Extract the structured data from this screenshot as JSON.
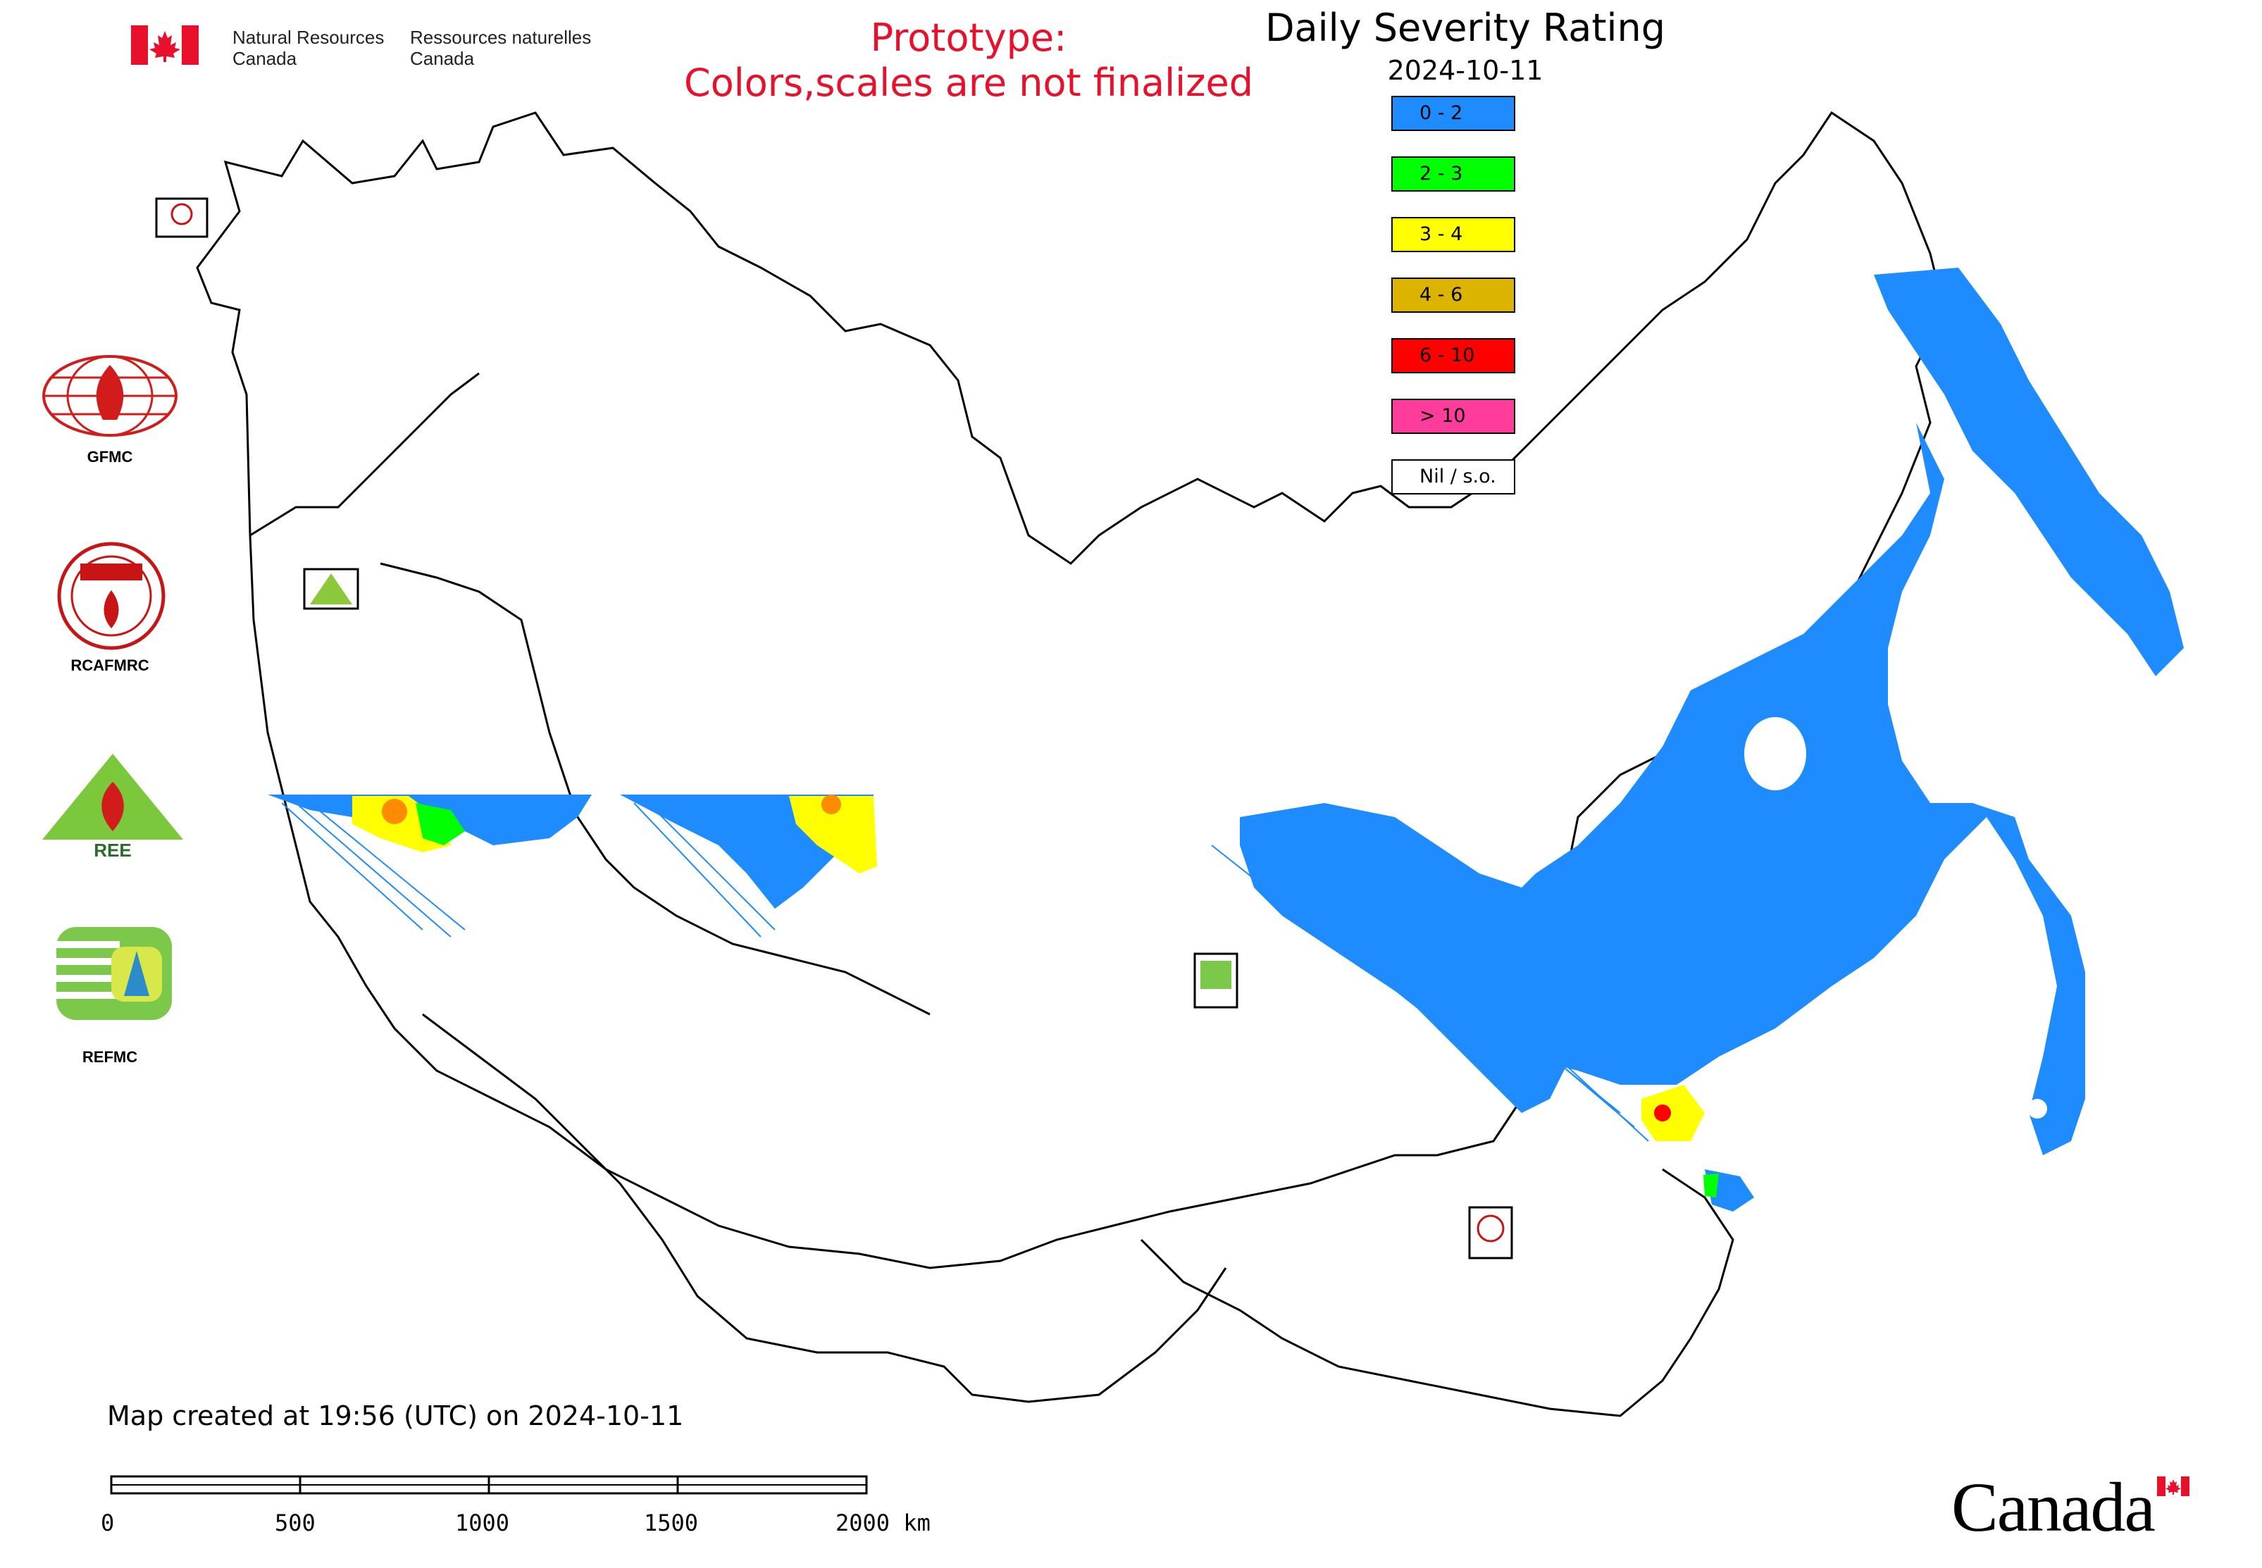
{
  "header": {
    "dept_en_line1": "Natural Resources",
    "dept_en_line2": "Canada",
    "dept_fr_line1": "Ressources naturelles",
    "dept_fr_line2": "Canada"
  },
  "prototype_notice": {
    "line1": "Prototype:",
    "line2": "Colors,scales are not finalized",
    "color": "#e8102a"
  },
  "map": {
    "title": "Daily Severity Rating",
    "date": "2024-10-11"
  },
  "legend": {
    "items": [
      {
        "label": "0 - 2",
        "color": "#1e8cff"
      },
      {
        "label": "2 - 3",
        "color": "#00ff00"
      },
      {
        "label": "3 - 4",
        "color": "#ffff00"
      },
      {
        "label": "4 - 6",
        "color": "#dcb400"
      },
      {
        "label": "6 - 10",
        "color": "#ff0000"
      },
      {
        "label": "> 10",
        "color": "#ff3c9c"
      },
      {
        "label": "Nil / s.o.",
        "color": "#ffffff"
      }
    ]
  },
  "partner_logos": [
    {
      "label": "GFMC",
      "icon": "gfmc-logo"
    },
    {
      "label": "RCAFMRC",
      "icon": "rcafmrc-logo"
    },
    {
      "label": "",
      "icon": "reefmc-logo"
    },
    {
      "label": "REFMC",
      "icon": "refmc-logo"
    }
  ],
  "footer": {
    "created_note": "Map created at 19:56 (UTC) on 2024-10-11",
    "scale_labels": [
      "0",
      "500",
      "1000",
      "1500",
      "2000 km"
    ],
    "wordmark": "Canada"
  },
  "colors": {
    "fill_low": "#1e8cff",
    "fill_green": "#00ff00",
    "fill_yellow": "#ffff00",
    "fill_orange": "#ff8c00",
    "fill_red": "#ff0000"
  }
}
